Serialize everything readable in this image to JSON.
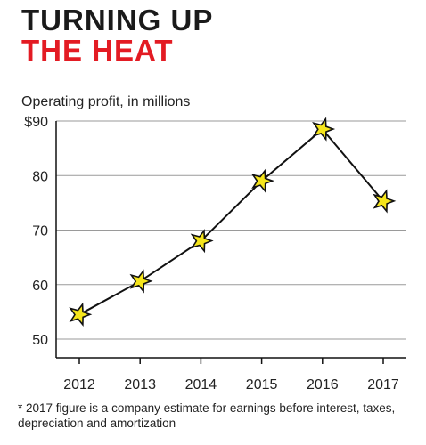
{
  "header": {
    "title_line1": "TURNING UP",
    "title_line2": "THE HEAT"
  },
  "colors": {
    "title_dark": "#1a1a1a",
    "title_accent": "#e31b23",
    "marker_fill": "#f5e51b",
    "line": "#111111",
    "grid": "#9a9a9a"
  },
  "chart_data": {
    "type": "line",
    "title": "TURNING UP THE HEAT",
    "ylabel": "Operating profit, in millions",
    "xlabel": "",
    "categories": [
      "2012",
      "2013",
      "2014",
      "2015",
      "2016",
      "2017"
    ],
    "series": [
      {
        "values": [
          54.5,
          60.6,
          68,
          79,
          88.5,
          75.3
        ]
      }
    ],
    "ylim": [
      50,
      90
    ],
    "yticks": [
      50,
      60,
      70,
      80,
      90
    ],
    "ytick_labels": [
      "50",
      "60",
      "70",
      "80",
      "$90"
    ],
    "grid": true,
    "marker": "star",
    "footnote": "* 2017 figure is a company estimate for earnings before interest, taxes, depreciation and amortization"
  }
}
